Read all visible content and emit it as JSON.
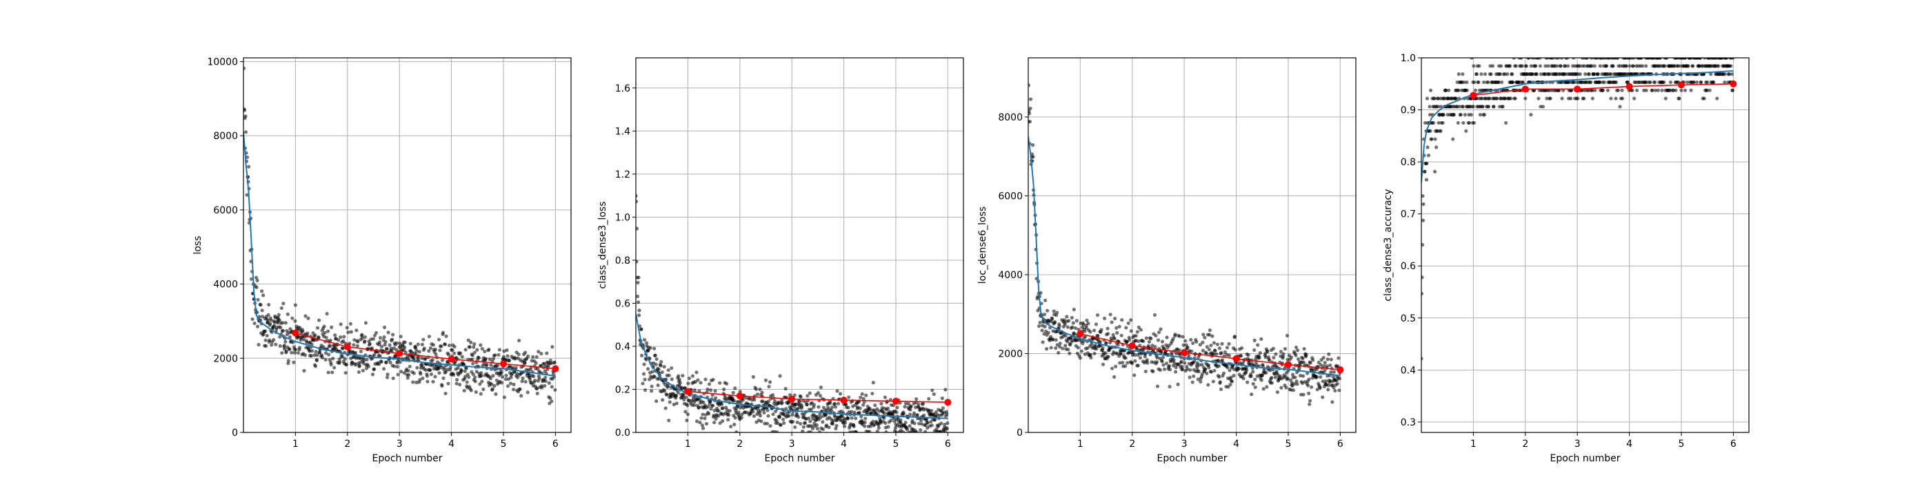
{
  "figure": {
    "background": "#ffffff"
  },
  "style": {
    "batch_point_color": "#000000",
    "moving_avg_color": "#1f77b4",
    "epoch_metric_color": "#ff0000",
    "grid_color": "#b0b0b0"
  },
  "chart_data": [
    {
      "type": "scatter",
      "title": "",
      "xlabel": "Epoch number",
      "ylabel": "loss",
      "xlim": [
        0,
        6.3
      ],
      "ylim": [
        0,
        10100
      ],
      "xticks": [
        1,
        2,
        3,
        4,
        5,
        6
      ],
      "yticks": [
        0,
        2000,
        4000,
        6000,
        8000,
        10000
      ],
      "grid": true,
      "batch_points": {
        "description_of_shape": "per-batch values as semi-transparent black dots",
        "x_step": 0.0067,
        "anchors": [
          [
            0,
            9800
          ],
          [
            0.02,
            8400
          ],
          [
            0.06,
            7600
          ],
          [
            0.1,
            6400
          ],
          [
            0.14,
            5000
          ],
          [
            0.18,
            3900
          ],
          [
            0.22,
            3400
          ],
          [
            0.3,
            3100
          ],
          [
            0.5,
            2850
          ],
          [
            0.8,
            2650
          ],
          [
            1,
            2550
          ],
          [
            1.5,
            2350
          ],
          [
            2,
            2200
          ],
          [
            3,
            2000
          ],
          [
            4,
            1850
          ],
          [
            5,
            1700
          ],
          [
            6,
            1550
          ]
        ],
        "spread": 320,
        "count": 900
      },
      "moving_average": {
        "x": [
          0,
          0.05,
          0.1,
          0.15,
          0.2,
          0.25,
          0.35,
          0.5,
          0.75,
          1,
          1.5,
          2,
          2.5,
          3,
          3.5,
          4,
          4.5,
          5,
          5.5,
          6
        ],
        "y": [
          8100,
          7200,
          6500,
          5200,
          3800,
          3150,
          2950,
          2800,
          2600,
          2450,
          2250,
          2120,
          2030,
          1980,
          1880,
          1820,
          1760,
          1720,
          1620,
          1520
        ]
      },
      "epoch_metric": {
        "x": [
          1,
          2,
          3,
          4,
          5,
          6
        ],
        "y": [
          2680,
          2310,
          2130,
          1980,
          1850,
          1720
        ]
      }
    },
    {
      "type": "scatter",
      "title": "",
      "xlabel": "Epoch number",
      "ylabel": "class_dense3_loss",
      "xlim": [
        0,
        6.3
      ],
      "ylim": [
        0,
        1.74
      ],
      "xticks": [
        1,
        2,
        3,
        4,
        5,
        6
      ],
      "yticks": [
        0.0,
        0.2,
        0.4,
        0.6,
        0.8,
        1.0,
        1.2,
        1.4,
        1.6
      ],
      "grid": true,
      "batch_points": {
        "description_of_shape": "per-batch values as semi-transparent black dots",
        "x_step": 0.0067,
        "anchors": [
          [
            0,
            1.1
          ],
          [
            0.03,
            0.7
          ],
          [
            0.08,
            0.5
          ],
          [
            0.15,
            0.38
          ],
          [
            0.3,
            0.3
          ],
          [
            0.5,
            0.23
          ],
          [
            1,
            0.17
          ],
          [
            2,
            0.12
          ],
          [
            3,
            0.1
          ],
          [
            4,
            0.085
          ],
          [
            5,
            0.075
          ],
          [
            6,
            0.065
          ]
        ],
        "spread": 0.05,
        "count": 900
      },
      "moving_average": {
        "x": [
          0,
          0.1,
          0.2,
          0.3,
          0.5,
          0.75,
          1,
          1.5,
          2,
          2.5,
          3,
          3.5,
          4,
          4.5,
          5,
          5.5,
          6
        ],
        "y": [
          0.55,
          0.42,
          0.36,
          0.31,
          0.25,
          0.21,
          0.18,
          0.15,
          0.13,
          0.12,
          0.1,
          0.095,
          0.085,
          0.08,
          0.075,
          0.07,
          0.065
        ]
      },
      "epoch_metric": {
        "x": [
          1,
          2,
          3,
          4,
          5,
          6
        ],
        "y": [
          0.19,
          0.17,
          0.155,
          0.15,
          0.145,
          0.14
        ]
      }
    },
    {
      "type": "scatter",
      "title": "",
      "xlabel": "Epoch number",
      "ylabel": "loc_dense6_loss",
      "xlim": [
        0,
        6.3
      ],
      "ylim": [
        0,
        9500
      ],
      "xticks": [
        1,
        2,
        3,
        4,
        5,
        6
      ],
      "yticks": [
        0,
        2000,
        4000,
        6000,
        8000
      ],
      "grid": true,
      "batch_points": {
        "description_of_shape": "per-batch values as semi-transparent black dots",
        "x_step": 0.0067,
        "anchors": [
          [
            0,
            8200
          ],
          [
            0.03,
            7800
          ],
          [
            0.07,
            7300
          ],
          [
            0.11,
            6000
          ],
          [
            0.15,
            4500
          ],
          [
            0.19,
            3400
          ],
          [
            0.24,
            2900
          ],
          [
            0.4,
            2700
          ],
          [
            0.7,
            2550
          ],
          [
            1,
            2400
          ],
          [
            1.5,
            2250
          ],
          [
            2,
            2100
          ],
          [
            3,
            1900
          ],
          [
            4,
            1750
          ],
          [
            5,
            1600
          ],
          [
            6,
            1450
          ]
        ],
        "spread": 300,
        "count": 900
      },
      "moving_average": {
        "x": [
          0,
          0.05,
          0.1,
          0.15,
          0.2,
          0.25,
          0.35,
          0.5,
          0.75,
          1,
          1.5,
          2,
          2.5,
          3,
          3.5,
          4,
          4.5,
          5,
          5.5,
          6
        ],
        "y": [
          7500,
          7000,
          6300,
          5000,
          3600,
          2950,
          2750,
          2650,
          2500,
          2380,
          2200,
          2080,
          1980,
          1900,
          1800,
          1720,
          1640,
          1600,
          1520,
          1440
        ]
      },
      "epoch_metric": {
        "x": [
          1,
          2,
          3,
          4,
          5,
          6
        ],
        "y": [
          2500,
          2200,
          2020,
          1870,
          1720,
          1590
        ]
      }
    },
    {
      "type": "scatter",
      "title": "",
      "xlabel": "Epoch number",
      "ylabel": "class_dense3_accuracy",
      "xlim": [
        0,
        6.3
      ],
      "ylim": [
        0.28,
        1.0
      ],
      "xticks": [
        1,
        2,
        3,
        4,
        5,
        6
      ],
      "yticks": [
        0.3,
        0.4,
        0.5,
        0.6,
        0.7,
        0.8,
        0.9,
        1.0
      ],
      "grid": true,
      "batch_points": {
        "description_of_shape": "per-batch accuracies quantized to multiples of 1/64, semi-transparent black dots",
        "x_step": 0.0067,
        "anchors": [
          [
            0,
            0.45
          ],
          [
            0.02,
            0.65
          ],
          [
            0.05,
            0.8
          ],
          [
            0.1,
            0.85
          ],
          [
            0.2,
            0.88
          ],
          [
            0.5,
            0.91
          ],
          [
            1,
            0.935
          ],
          [
            2,
            0.955
          ],
          [
            3,
            0.965
          ],
          [
            4,
            0.972
          ],
          [
            5,
            0.978
          ],
          [
            6,
            0.982
          ]
        ],
        "spread": 0.025,
        "count": 900
      },
      "moving_average": {
        "x": [
          0,
          0.05,
          0.1,
          0.2,
          0.35,
          0.5,
          0.75,
          1,
          1.5,
          2,
          2.5,
          3,
          3.5,
          4,
          4.5,
          5,
          5.5,
          6
        ],
        "y": [
          0.76,
          0.83,
          0.86,
          0.885,
          0.9,
          0.91,
          0.92,
          0.93,
          0.94,
          0.95,
          0.955,
          0.958,
          0.962,
          0.965,
          0.968,
          0.97,
          0.972,
          0.975
        ]
      },
      "epoch_metric": {
        "x": [
          1,
          2,
          3,
          4,
          5,
          6
        ],
        "y": [
          0.928,
          0.94,
          0.94,
          0.945,
          0.948,
          0.95
        ]
      }
    }
  ]
}
